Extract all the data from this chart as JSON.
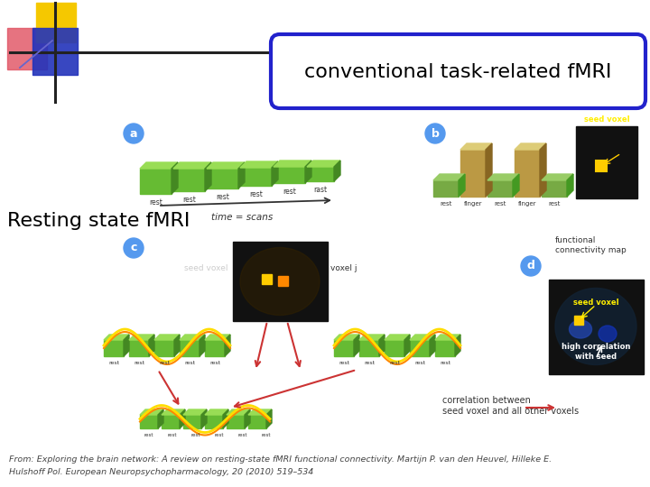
{
  "title_box_text": "conventional task-related fMRI",
  "left_label": "Resting state fMRI",
  "citation_line1": "From: Exploring the brain network: A review on resting-state fMRI functional connectivity. Martijn P. van den Heuvel, Hilleke E.",
  "citation_line2": "Hulshoff Pol. European Neuropsychopharmacology, 20 (2010) 519–534",
  "bg_color": "#ffffff",
  "box_edge_color": "#2222cc",
  "box_text_color": "#000000",
  "left_label_color": "#000000",
  "citation_color": "#444444",
  "logo_yellow": "#f5c800",
  "logo_red": "#e05060",
  "logo_blue": "#2233bb",
  "logo_cross_color": "#222222"
}
